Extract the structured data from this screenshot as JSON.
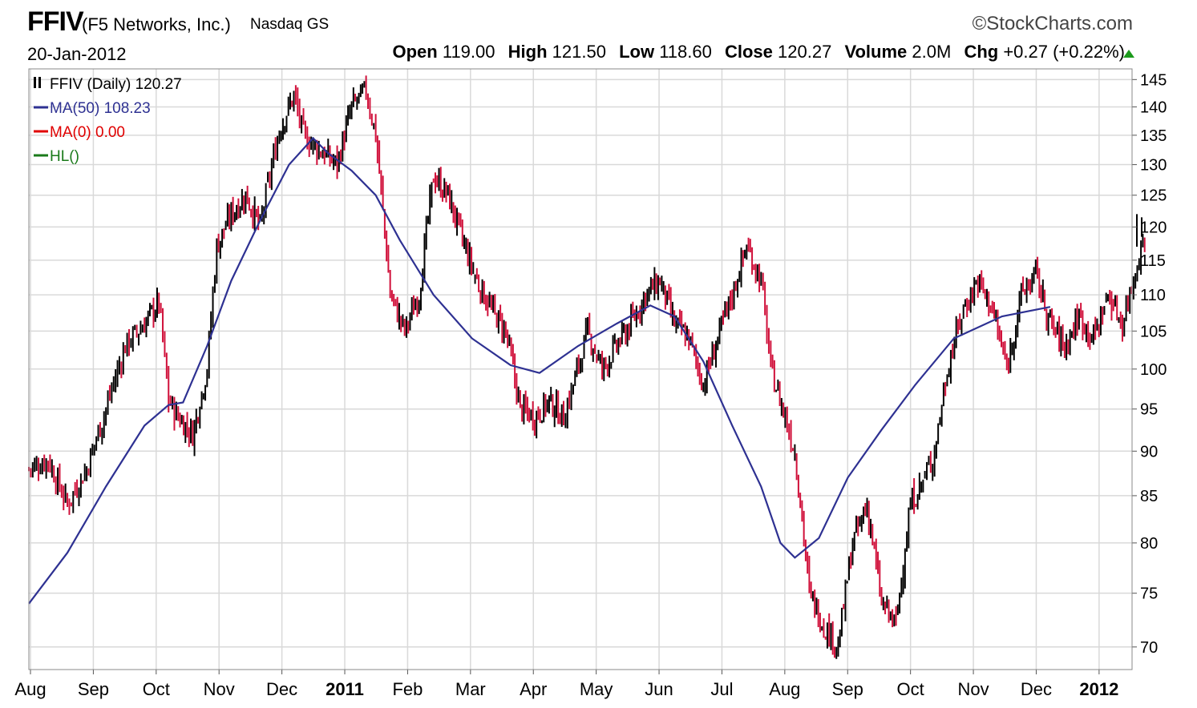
{
  "header": {
    "ticker": "FFIV",
    "company": "(F5 Networks, Inc.)",
    "exchange": "Nasdaq GS",
    "brand": "©StockCharts.com",
    "date": "20-Jan-2012",
    "open_label": "Open",
    "open": "119.00",
    "high_label": "High",
    "high": "121.50",
    "low_label": "Low",
    "low": "118.60",
    "close_label": "Close",
    "close": "120.27",
    "volume_label": "Volume",
    "volume": "2.0M",
    "chg_label": "Chg",
    "chg": "+0.27 (+0.22%)"
  },
  "legend": {
    "price": "FFIV (Daily) 120.27",
    "ma50": "MA(50) 108.23",
    "ma0": "MA(0) 0.00",
    "hl": "HL()"
  },
  "colors": {
    "up": "#000000",
    "down": "#d0103a",
    "ma50": "#2e3192",
    "ma0": "#e00000",
    "hl": "#1a7a1a",
    "grid": "#d9d9d9"
  },
  "chart_data": {
    "type": "candlestick",
    "x_axis": [
      "Aug",
      "Sep",
      "Oct",
      "Nov",
      "Dec",
      "2011",
      "Feb",
      "Mar",
      "Apr",
      "May",
      "Jun",
      "Jul",
      "Aug",
      "Sep",
      "Oct",
      "Nov",
      "Dec",
      "2012"
    ],
    "y_ticks": [
      70,
      75,
      80,
      85,
      90,
      95,
      100,
      105,
      110,
      115,
      120,
      125,
      130,
      135,
      140,
      145
    ],
    "y_scale": "log",
    "ylim": [
      68,
      147
    ],
    "close_path": [
      [
        2010.58,
        88
      ],
      [
        2010.62,
        89
      ],
      [
        2010.66,
        84
      ],
      [
        2010.7,
        88
      ],
      [
        2010.74,
        95
      ],
      [
        2010.78,
        103
      ],
      [
        2010.82,
        106
      ],
      [
        2010.85,
        109
      ],
      [
        2010.87,
        96
      ],
      [
        2010.89,
        94
      ],
      [
        2010.92,
        92
      ],
      [
        2010.95,
        100
      ],
      [
        2010.97,
        117
      ],
      [
        2011.0,
        122
      ],
      [
        2011.03,
        125
      ],
      [
        2011.06,
        120
      ],
      [
        2011.1,
        136
      ],
      [
        2011.13,
        142
      ],
      [
        2011.15,
        135
      ],
      [
        2011.19,
        132
      ],
      [
        2011.22,
        130
      ],
      [
        2011.25,
        140
      ],
      [
        2011.28,
        143
      ],
      [
        2011.3,
        135
      ],
      [
        2011.33,
        110
      ],
      [
        2011.36,
        105
      ],
      [
        2011.39,
        110
      ],
      [
        2011.42,
        128
      ],
      [
        2011.45,
        125
      ],
      [
        2011.48,
        118
      ],
      [
        2011.51,
        112
      ],
      [
        2011.54,
        108
      ],
      [
        2011.57,
        105
      ],
      [
        2011.6,
        95
      ],
      [
        2011.63,
        94
      ],
      [
        2011.66,
        96
      ],
      [
        2011.69,
        94
      ],
      [
        2011.71,
        98
      ],
      [
        2011.74,
        105
      ],
      [
        2011.77,
        100
      ],
      [
        2011.8,
        103
      ],
      [
        2011.83,
        106
      ],
      [
        2011.86,
        110
      ],
      [
        2011.89,
        112
      ],
      [
        2011.92,
        106
      ],
      [
        2011.95,
        104
      ],
      [
        2011.98,
        98
      ],
      [
        2012.01,
        104
      ],
      [
        2012.04,
        110
      ],
      [
        2012.07,
        117
      ],
      [
        2012.1,
        112
      ],
      [
        2012.12,
        100
      ],
      [
        2012.15,
        94
      ],
      [
        2012.17,
        90
      ],
      [
        2012.2,
        75
      ],
      [
        2012.23,
        72
      ],
      [
        2012.26,
        70
      ],
      [
        2012.29,
        80
      ],
      [
        2012.32,
        84
      ],
      [
        2012.35,
        74
      ],
      [
        2012.38,
        72
      ],
      [
        2012.41,
        84
      ],
      [
        2012.44,
        87
      ],
      [
        2012.46,
        90
      ],
      [
        2012.49,
        101
      ],
      [
        2012.52,
        108
      ],
      [
        2012.55,
        112
      ],
      [
        2012.58,
        108
      ],
      [
        2012.61,
        100
      ],
      [
        2012.64,
        110
      ],
      [
        2012.67,
        113
      ],
      [
        2012.7,
        106
      ],
      [
        2012.73,
        103
      ],
      [
        2012.76,
        107
      ],
      [
        2012.79,
        104
      ],
      [
        2012.82,
        110
      ],
      [
        2012.85,
        106
      ],
      [
        2012.9,
        120
      ]
    ],
    "ma50": [
      [
        2010.58,
        74
      ],
      [
        2010.66,
        79
      ],
      [
        2010.74,
        86
      ],
      [
        2010.82,
        93
      ],
      [
        2010.87,
        95.5
      ],
      [
        2010.9,
        95.8
      ],
      [
        2010.95,
        103
      ],
      [
        2011.0,
        112
      ],
      [
        2011.06,
        121
      ],
      [
        2011.12,
        130
      ],
      [
        2011.17,
        134.5
      ],
      [
        2011.2,
        132
      ],
      [
        2011.25,
        129
      ],
      [
        2011.3,
        125
      ],
      [
        2011.35,
        118
      ],
      [
        2011.42,
        110
      ],
      [
        2011.5,
        104
      ],
      [
        2011.58,
        100.5
      ],
      [
        2011.64,
        99.5
      ],
      [
        2011.72,
        103
      ],
      [
        2011.8,
        106
      ],
      [
        2011.87,
        108.5
      ],
      [
        2011.92,
        107
      ],
      [
        2011.98,
        101
      ],
      [
        2012.04,
        93
      ],
      [
        2012.1,
        86
      ],
      [
        2012.14,
        80
      ],
      [
        2012.17,
        78.5
      ],
      [
        2012.22,
        80.5
      ],
      [
        2012.28,
        87
      ],
      [
        2012.35,
        92.5
      ],
      [
        2012.42,
        98
      ],
      [
        2012.5,
        104
      ],
      [
        2012.6,
        107
      ],
      [
        2012.7,
        108.3
      ]
    ],
    "series": [
      {
        "name": "FFIV (Daily) 120.27"
      },
      {
        "name": "MA(50) 108.23"
      },
      {
        "name": "MA(0) 0.00"
      },
      {
        "name": "HL()"
      }
    ],
    "last_price": 120.27
  }
}
